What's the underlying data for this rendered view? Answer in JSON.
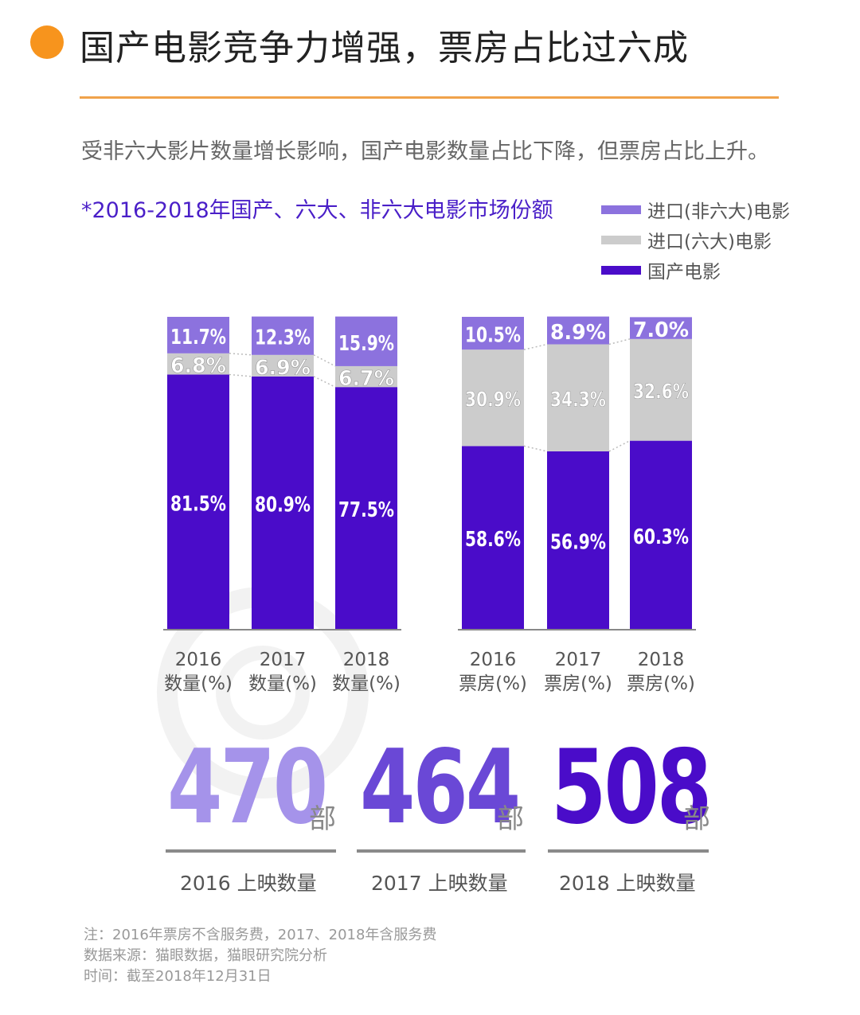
{
  "header": {
    "title": "国产电影竞争力增强，票房占比过六成",
    "subtitle": "受非六大影片数量增长影响，国产电影数量占比下降，但票房占比上升。",
    "chart_heading": "*2016-2018年国产、六大、非六大电影市场份额"
  },
  "legend": [
    {
      "label": "进口(非六大)电影",
      "color": "#8c72de"
    },
    {
      "label": "进口(六大)电影",
      "color": "#cccccc"
    },
    {
      "label": "国产电影",
      "color": "#4a0cc9"
    }
  ],
  "chart_data": {
    "type": "bar",
    "stacked": true,
    "normalized": true,
    "categories": [
      "2016\n数量(%)",
      "2017\n数量(%)",
      "2018\n数量(%)",
      "2016\n票房(%)",
      "2017\n票房(%)",
      "2018\n票房(%)"
    ],
    "series": [
      {
        "name": "国产电影",
        "color": "#4a0cc9",
        "values": [
          81.5,
          80.9,
          77.5,
          58.6,
          56.9,
          60.3
        ],
        "labels": [
          "81.5%",
          "80.9%",
          "77.5%",
          "58.6%",
          "56.9%",
          "60.3%"
        ]
      },
      {
        "name": "进口(六大)电影",
        "color": "#cccccc",
        "values": [
          6.8,
          6.9,
          6.7,
          30.9,
          34.3,
          32.6
        ],
        "labels": [
          "6.8%",
          "6.9%",
          "6.7%",
          "30.9%",
          "34.3%",
          "32.6%"
        ]
      },
      {
        "name": "进口(非六大)电影",
        "color": "#8c72de",
        "values": [
          11.7,
          12.3,
          15.9,
          10.5,
          8.9,
          7.0
        ],
        "labels": [
          "11.7%",
          "12.3%",
          "15.9%",
          "10.5%",
          "8.9%",
          "7.0%"
        ]
      }
    ],
    "groups": [
      "数量(%)",
      "票房(%)"
    ],
    "ylim": [
      0,
      100
    ],
    "grid": false
  },
  "stats": [
    {
      "number": "470",
      "unit": "部",
      "caption": "2016 上映数量",
      "color": "#a593ea"
    },
    {
      "number": "464",
      "unit": "部",
      "caption": "2017 上映数量",
      "color": "#6a48d6"
    },
    {
      "number": "508",
      "unit": "部",
      "caption": "2018 上映数量",
      "color": "#4a0cc9"
    }
  ],
  "notes": [
    "注：2016年票房不含服务费，2017、2018年含服务费",
    "数据来源：猫眼数据，猫眼研究院分析",
    "时间：截至2018年12月31日"
  ],
  "colors": {
    "accent": "#f7941d",
    "heading": "#4a1fc8"
  }
}
